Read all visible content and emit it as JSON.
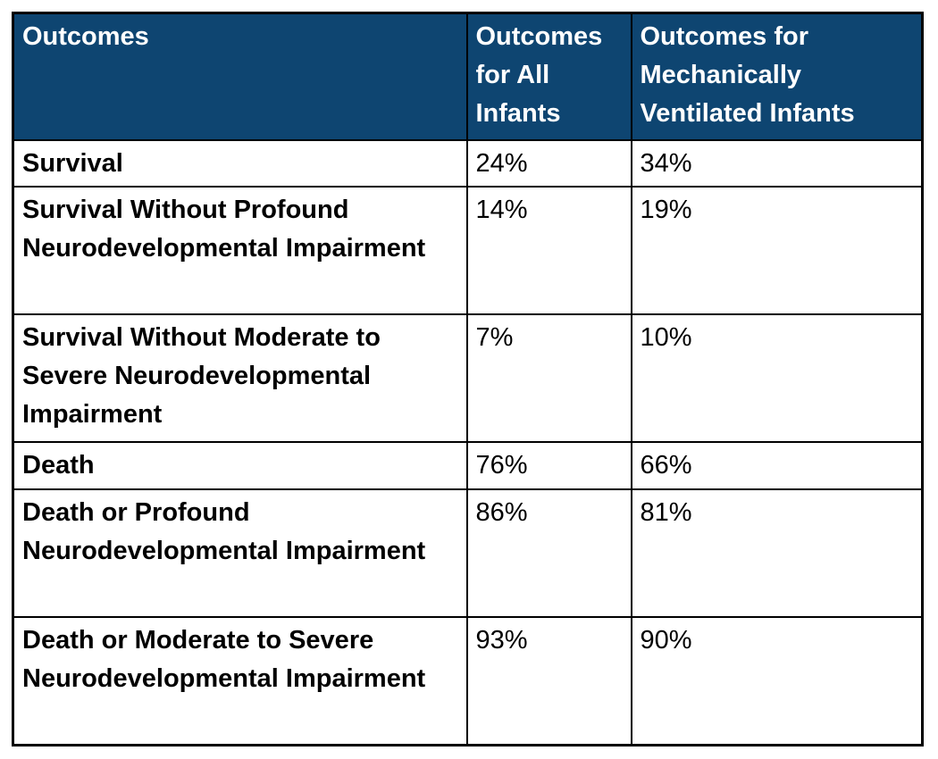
{
  "table": {
    "columns": [
      {
        "label": "Outcomes"
      },
      {
        "label": "Outcomes for All Infants"
      },
      {
        "label": "Outcomes for Mechanically Ventilated Infants"
      }
    ],
    "rows": [
      {
        "outcome": "Survival",
        "all_infants": "24%",
        "ventilated": "34%"
      },
      {
        "outcome": "Survival Without Profound Neurodevelopmental Impairment",
        "all_infants": "14%",
        "ventilated": "19%"
      },
      {
        "outcome": "Survival Without Moderate to Severe Neurodevelopmental Impairment",
        "all_infants": "7%",
        "ventilated": "10%"
      },
      {
        "outcome": "Death",
        "all_infants": "76%",
        "ventilated": "66%"
      },
      {
        "outcome": "Death or Profound Neurodevelopmental Impairment",
        "all_infants": "86%",
        "ventilated": "81%"
      },
      {
        "outcome": "Death or Moderate to Severe Neurodevelopmental Impairment",
        "all_infants": "93%",
        "ventilated": "90%"
      }
    ],
    "colors": {
      "header_bg": "#0e4571",
      "header_text": "#ffffff",
      "body_text": "#000000",
      "border": "#000000"
    }
  }
}
